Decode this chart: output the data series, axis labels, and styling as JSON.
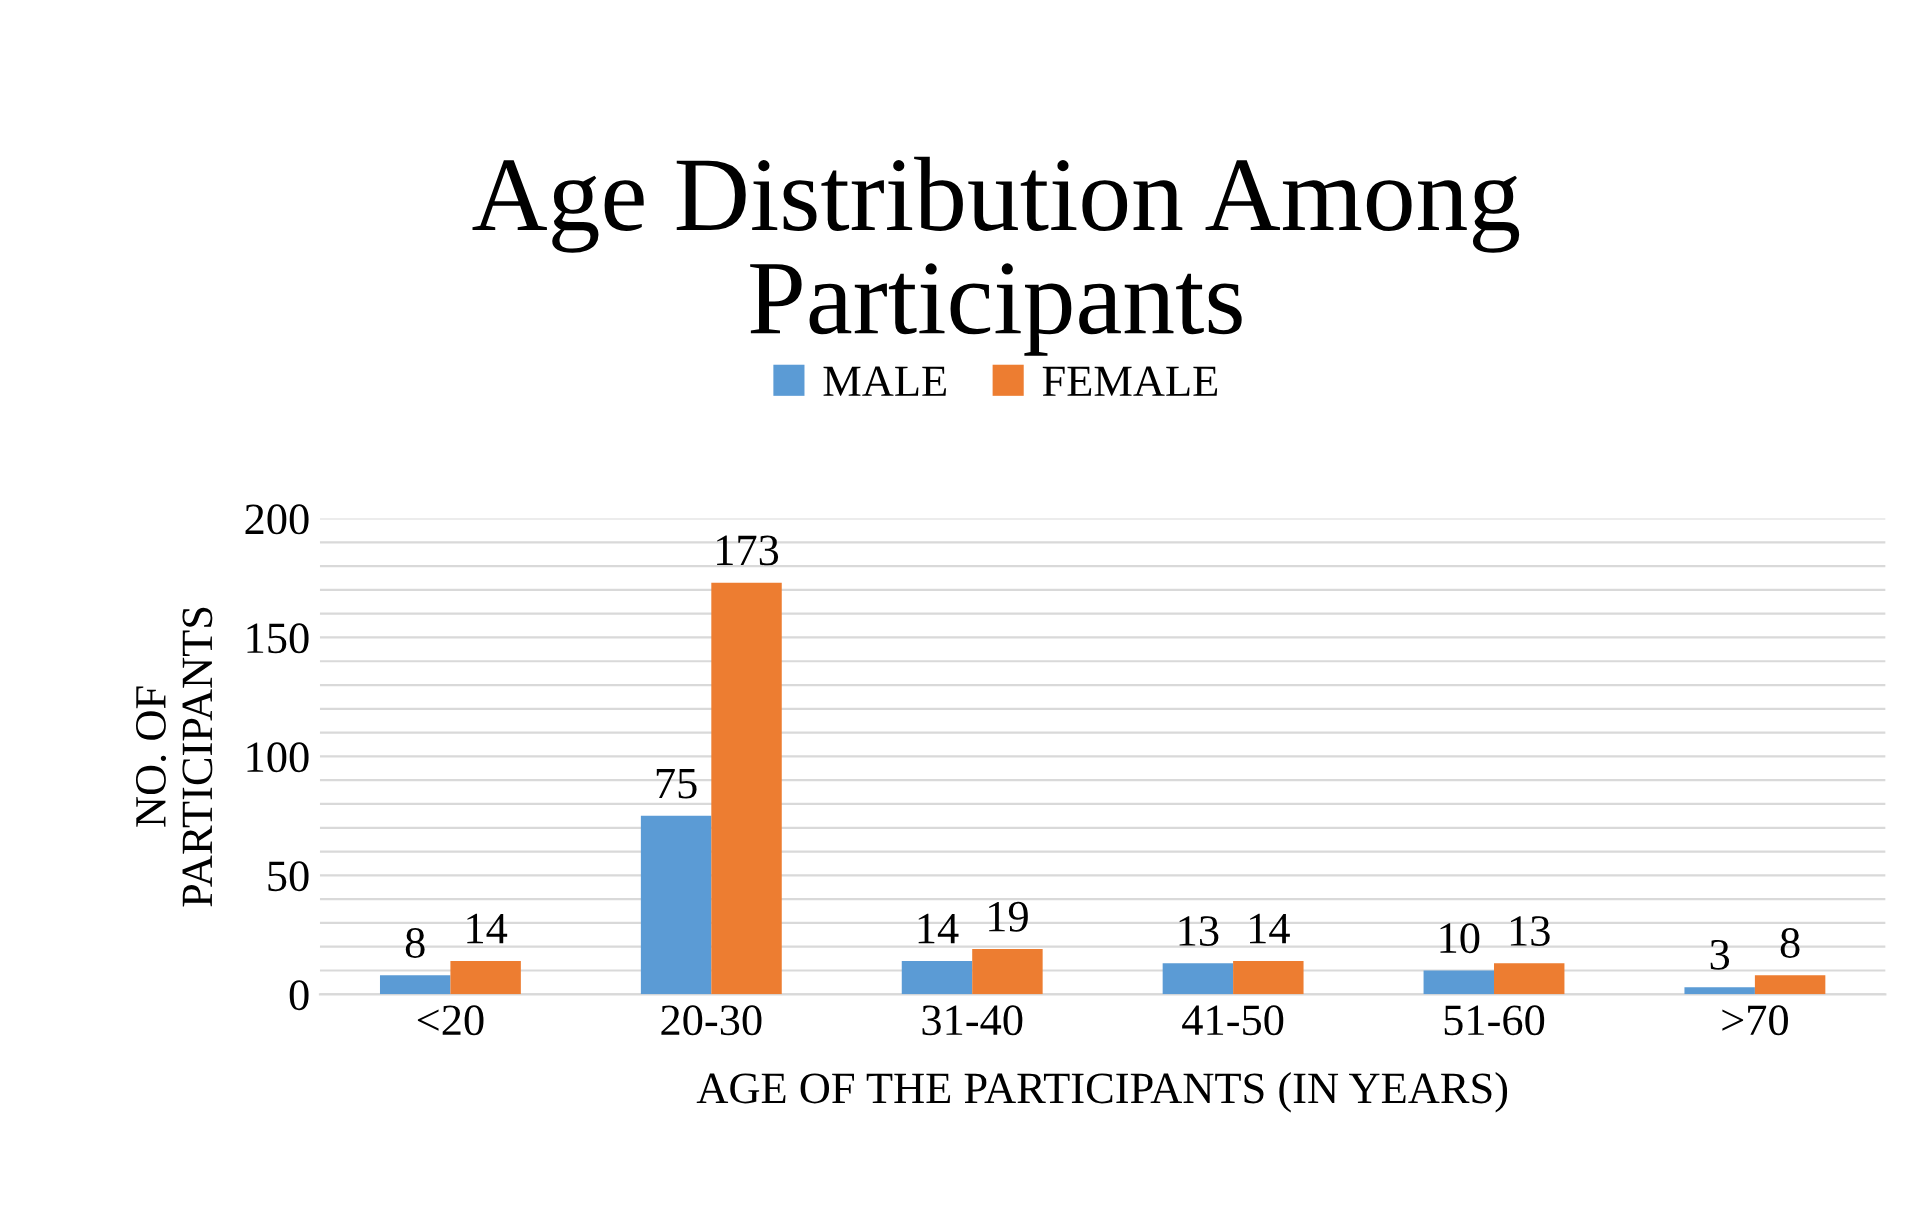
{
  "chart_data": {
    "type": "bar",
    "title": "Age Distribution Among\nParticipants",
    "xlabel": "AGE OF THE PARTICIPANTS (IN YEARS)",
    "ylabel": "NO. OF\nPARTICIPANTS",
    "categories": [
      "<20",
      "20-30",
      "31-40",
      "41-50",
      "51-60",
      ">70"
    ],
    "series": [
      {
        "name": "MALE",
        "color": "#5b9bd5",
        "values": [
          8,
          75,
          14,
          13,
          10,
          3
        ]
      },
      {
        "name": "FEMALE",
        "color": "#ed7d31",
        "values": [
          14,
          173,
          19,
          14,
          13,
          8
        ]
      }
    ],
    "ylim": [
      0,
      200
    ],
    "yticks": [
      0,
      {
        "value": 10,
        "label": null
      },
      {
        "value": 20,
        "label": null
      },
      {
        "value": 30,
        "label": null
      },
      {
        "value": 40,
        "label": null
      },
      50,
      {
        "value": 60,
        "label": null
      },
      {
        "value": 70,
        "label": null
      },
      {
        "value": 80,
        "label": null
      },
      {
        "value": 90,
        "label": null
      },
      100,
      {
        "value": 110,
        "label": null
      },
      {
        "value": 120,
        "label": null
      },
      {
        "value": 130,
        "label": null
      },
      {
        "value": 140,
        "label": null
      },
      150,
      {
        "value": 160,
        "label": null
      },
      {
        "value": 170,
        "label": null
      },
      {
        "value": 180,
        "label": null
      },
      {
        "value": 190,
        "label": null
      },
      200
    ],
    "grid": "y",
    "legend": "top",
    "data_labels": true
  }
}
